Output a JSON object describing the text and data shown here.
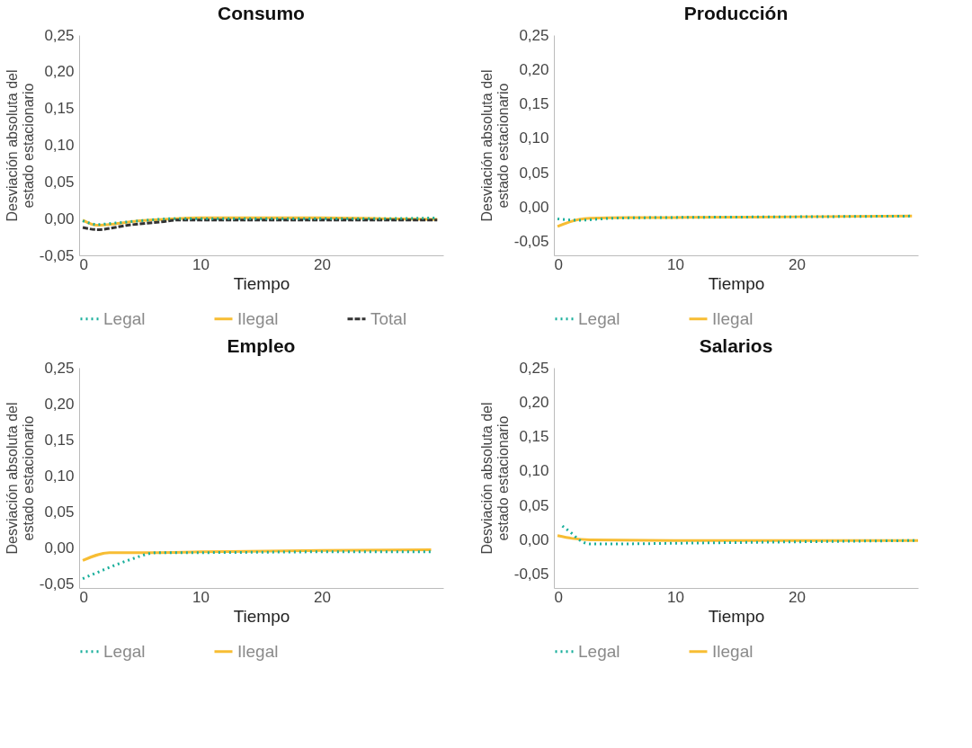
{
  "chart_data": [
    {
      "type": "line",
      "title": "Consumo",
      "xlabel": "Tiempo",
      "ylabel": "Desviación absoluta del estado estacionario",
      "xlim": [
        0,
        30
      ],
      "xticks": [
        0,
        10,
        20
      ],
      "ylim": [
        -0.05,
        0.25
      ],
      "yticks": [
        {
          "value": -0.05,
          "label": "-0,05"
        },
        {
          "value": 0,
          "label": "0,00"
        },
        {
          "value": 0.05,
          "label": "0,05"
        },
        {
          "value": 0.1,
          "label": "0,10"
        },
        {
          "value": 0.15,
          "label": "0,15"
        },
        {
          "value": 0.2,
          "label": "0,20"
        },
        {
          "value": 0.25,
          "label": "0,25"
        }
      ],
      "grid": false,
      "legend": "bottom",
      "series": [
        {
          "name": "Legal",
          "color": "#1aaf9c",
          "line_style": "dotted",
          "x": [
            0.3,
            1.5,
            3,
            5,
            8,
            10,
            15,
            20,
            25,
            29.5
          ],
          "values": [
            -0.003,
            -0.008,
            -0.006,
            -0.003,
            0.0,
            0.0,
            0.0,
            0.0,
            0.0,
            0.001
          ]
        },
        {
          "name": "Ilegal",
          "color": "#f7bd33",
          "line_style": "solid",
          "x": [
            0.3,
            1.5,
            3,
            5,
            7,
            10,
            15,
            20,
            25,
            29.5
          ],
          "values": [
            -0.002,
            -0.009,
            -0.007,
            -0.003,
            -0.001,
            0.001,
            0.001,
            0.001,
            0.0,
            -0.001
          ]
        },
        {
          "name": "Total",
          "color": "#333333",
          "line_style": "dashed",
          "x": [
            0.3,
            1.5,
            4,
            7,
            8,
            10,
            15,
            20,
            25,
            29.5
          ],
          "values": [
            -0.012,
            -0.015,
            -0.009,
            -0.004,
            -0.002,
            -0.002,
            -0.002,
            -0.002,
            -0.002,
            -0.002
          ]
        }
      ]
    },
    {
      "type": "line",
      "title": "Producción",
      "xlabel": "Tiempo",
      "ylabel": "Desviación absoluta del estado estacionario",
      "xlim": [
        0,
        30
      ],
      "xticks": [
        0,
        10,
        20
      ],
      "ylim": [
        -0.07,
        0.25
      ],
      "yticks": [
        {
          "value": -0.05,
          "label": "-0,05"
        },
        {
          "value": 0,
          "label": "0,00"
        },
        {
          "value": 0.05,
          "label": "0,05"
        },
        {
          "value": 0.1,
          "label": "0,10"
        },
        {
          "value": 0.15,
          "label": "0,15"
        },
        {
          "value": 0.2,
          "label": "0,20"
        },
        {
          "value": 0.25,
          "label": "0,25"
        }
      ],
      "grid": false,
      "legend": "bottom",
      "series": [
        {
          "name": "Legal",
          "color": "#1aaf9c",
          "line_style": "dotted",
          "x": [
            0.3,
            2,
            5,
            10,
            20,
            29.5
          ],
          "values": [
            -0.017,
            -0.019,
            -0.016,
            -0.015,
            -0.014,
            -0.013
          ]
        },
        {
          "name": "Ilegal",
          "color": "#f7bd33",
          "line_style": "solid",
          "x": [
            0.3,
            2,
            3,
            6,
            10,
            20,
            29.5
          ],
          "values": [
            -0.028,
            -0.018,
            -0.016,
            -0.015,
            -0.015,
            -0.014,
            -0.013
          ]
        }
      ]
    },
    {
      "type": "line",
      "title": "Empleo",
      "xlabel": "Tiempo",
      "ylabel": "Desviación absoluta del estado estacionario",
      "xlim": [
        0,
        30
      ],
      "xticks": [
        0,
        10,
        20
      ],
      "ylim": [
        -0.055,
        0.25
      ],
      "yticks": [
        {
          "value": -0.05,
          "label": "-0,05"
        },
        {
          "value": 0,
          "label": "0,00"
        },
        {
          "value": 0.05,
          "label": "0,05"
        },
        {
          "value": 0.1,
          "label": "0,10"
        },
        {
          "value": 0.15,
          "label": "0,15"
        },
        {
          "value": 0.2,
          "label": "0,20"
        },
        {
          "value": 0.25,
          "label": "0,25"
        }
      ],
      "grid": false,
      "legend": "bottom",
      "series": [
        {
          "name": "Legal",
          "color": "#1aaf9c",
          "line_style": "dotted",
          "x": [
            0.3,
            2,
            4,
            6.5,
            10,
            20,
            29
          ],
          "values": [
            -0.042,
            -0.03,
            -0.017,
            -0.006,
            -0.006,
            -0.005,
            -0.005
          ]
        },
        {
          "name": "Ilegal",
          "color": "#f7bd33",
          "line_style": "solid",
          "x": [
            0.3,
            2.5,
            6,
            10,
            20,
            29
          ],
          "values": [
            -0.017,
            -0.006,
            -0.006,
            -0.005,
            -0.003,
            -0.002
          ]
        }
      ]
    },
    {
      "type": "line",
      "title": "Salarios",
      "xlabel": "Tiempo",
      "ylabel": "Desviación absoluta del estado estacionario",
      "xlim": [
        0,
        30
      ],
      "xticks": [
        0,
        10,
        20
      ],
      "ylim": [
        -0.07,
        0.25
      ],
      "yticks": [
        {
          "value": -0.05,
          "label": "-0,05"
        },
        {
          "value": 0,
          "label": "0,00"
        },
        {
          "value": 0.05,
          "label": "0,05"
        },
        {
          "value": 0.1,
          "label": "0,10"
        },
        {
          "value": 0.15,
          "label": "0,15"
        },
        {
          "value": 0.2,
          "label": "0,20"
        },
        {
          "value": 0.25,
          "label": "0,25"
        }
      ],
      "grid": false,
      "legend": "bottom",
      "series": [
        {
          "name": "Legal",
          "color": "#1aaf9c",
          "line_style": "dotted",
          "x": [
            0.7,
            1.5,
            2,
            3,
            5,
            10,
            20,
            30
          ],
          "values": [
            0.02,
            0.009,
            0.001,
            -0.006,
            -0.006,
            -0.005,
            -0.003,
            -0.001
          ]
        },
        {
          "name": "Ilegal",
          "color": "#f7bd33",
          "line_style": "solid",
          "x": [
            0.3,
            1.5,
            3,
            10,
            20,
            30
          ],
          "values": [
            0.006,
            0.002,
            0.0,
            -0.001,
            -0.001,
            -0.001
          ]
        }
      ]
    }
  ]
}
